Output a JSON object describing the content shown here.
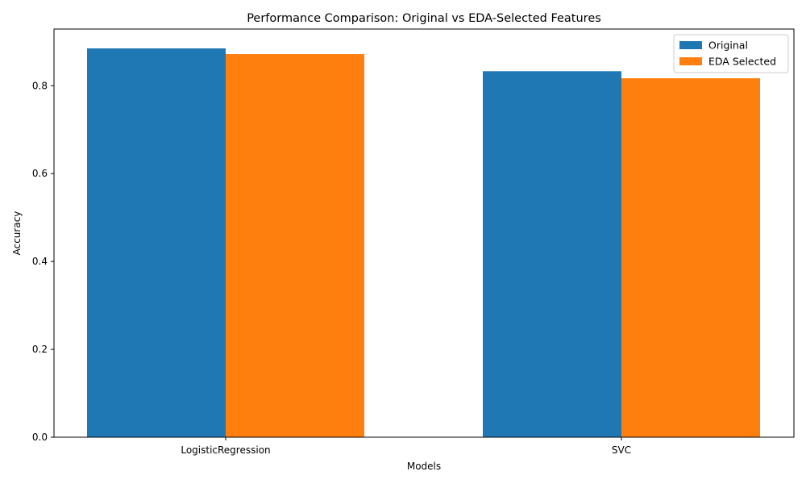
{
  "chart_data": {
    "type": "bar",
    "title": "Performance Comparison: Original vs EDA-Selected Features",
    "xlabel": "Models",
    "ylabel": "Accuracy",
    "categories": [
      "LogisticRegression",
      "SVC"
    ],
    "series": [
      {
        "name": "Original",
        "color": "#1f77b4",
        "values": [
          0.885,
          0.833
        ]
      },
      {
        "name": "EDA Selected",
        "color": "#ff7f0e",
        "values": [
          0.872,
          0.817
        ]
      }
    ],
    "ylim": [
      0,
      0.929
    ],
    "yticks": [
      "0.0",
      "0.2",
      "0.4",
      "0.6",
      "0.8"
    ],
    "ytick_values": [
      0,
      0.2,
      0.4,
      0.6,
      0.8
    ],
    "grid": false,
    "legend_position": "top-right"
  }
}
